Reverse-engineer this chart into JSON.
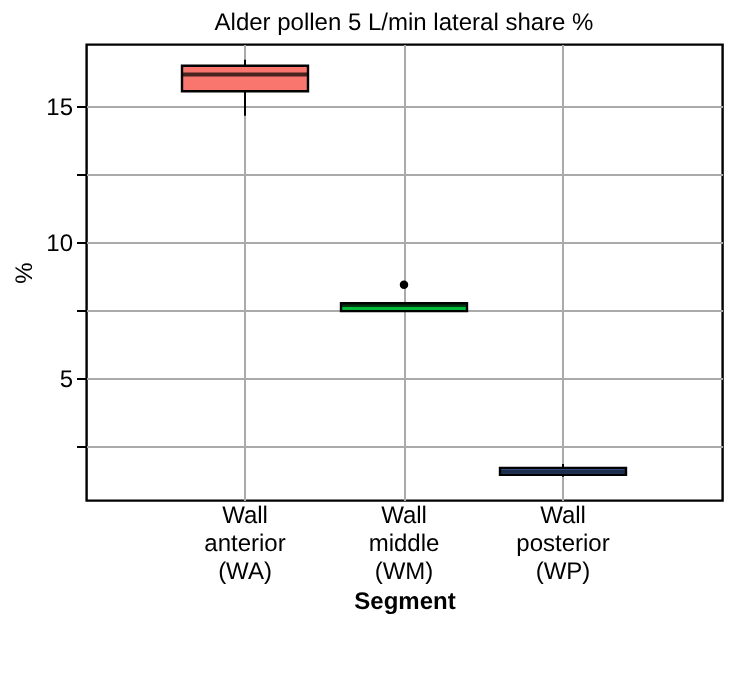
{
  "chart_data": {
    "type": "box",
    "title": "Alder pollen 5 L/min lateral share %",
    "xlabel": "Segment",
    "ylabel": "%",
    "categories": [
      "Wall anterior (WA)",
      "Wall middle (WM)",
      "Wall posterior (WP)"
    ],
    "colors": [
      "#f8766d",
      "#00ba38",
      "#619cff"
    ],
    "boxes": [
      {
        "low": 14.66,
        "q1": 15.56,
        "median": 16.18,
        "q3": 16.5,
        "high": 16.72
      },
      {
        "low": 7.46,
        "q1": 7.46,
        "median": 7.68,
        "q3": 7.75,
        "high": 7.75,
        "outliers": [
          8.43
        ]
      },
      {
        "low": 1.36,
        "q1": 1.43,
        "median": 1.55,
        "q3": 1.68,
        "high": 1.83
      }
    ],
    "ylim": [
      0.5,
      17.3
    ],
    "yticks": [
      {
        "value": 2.5,
        "label": null
      },
      5,
      {
        "value": 7.5,
        "label": null
      },
      10,
      {
        "value": 12.5,
        "label": null
      },
      15
    ],
    "grid": true
  }
}
